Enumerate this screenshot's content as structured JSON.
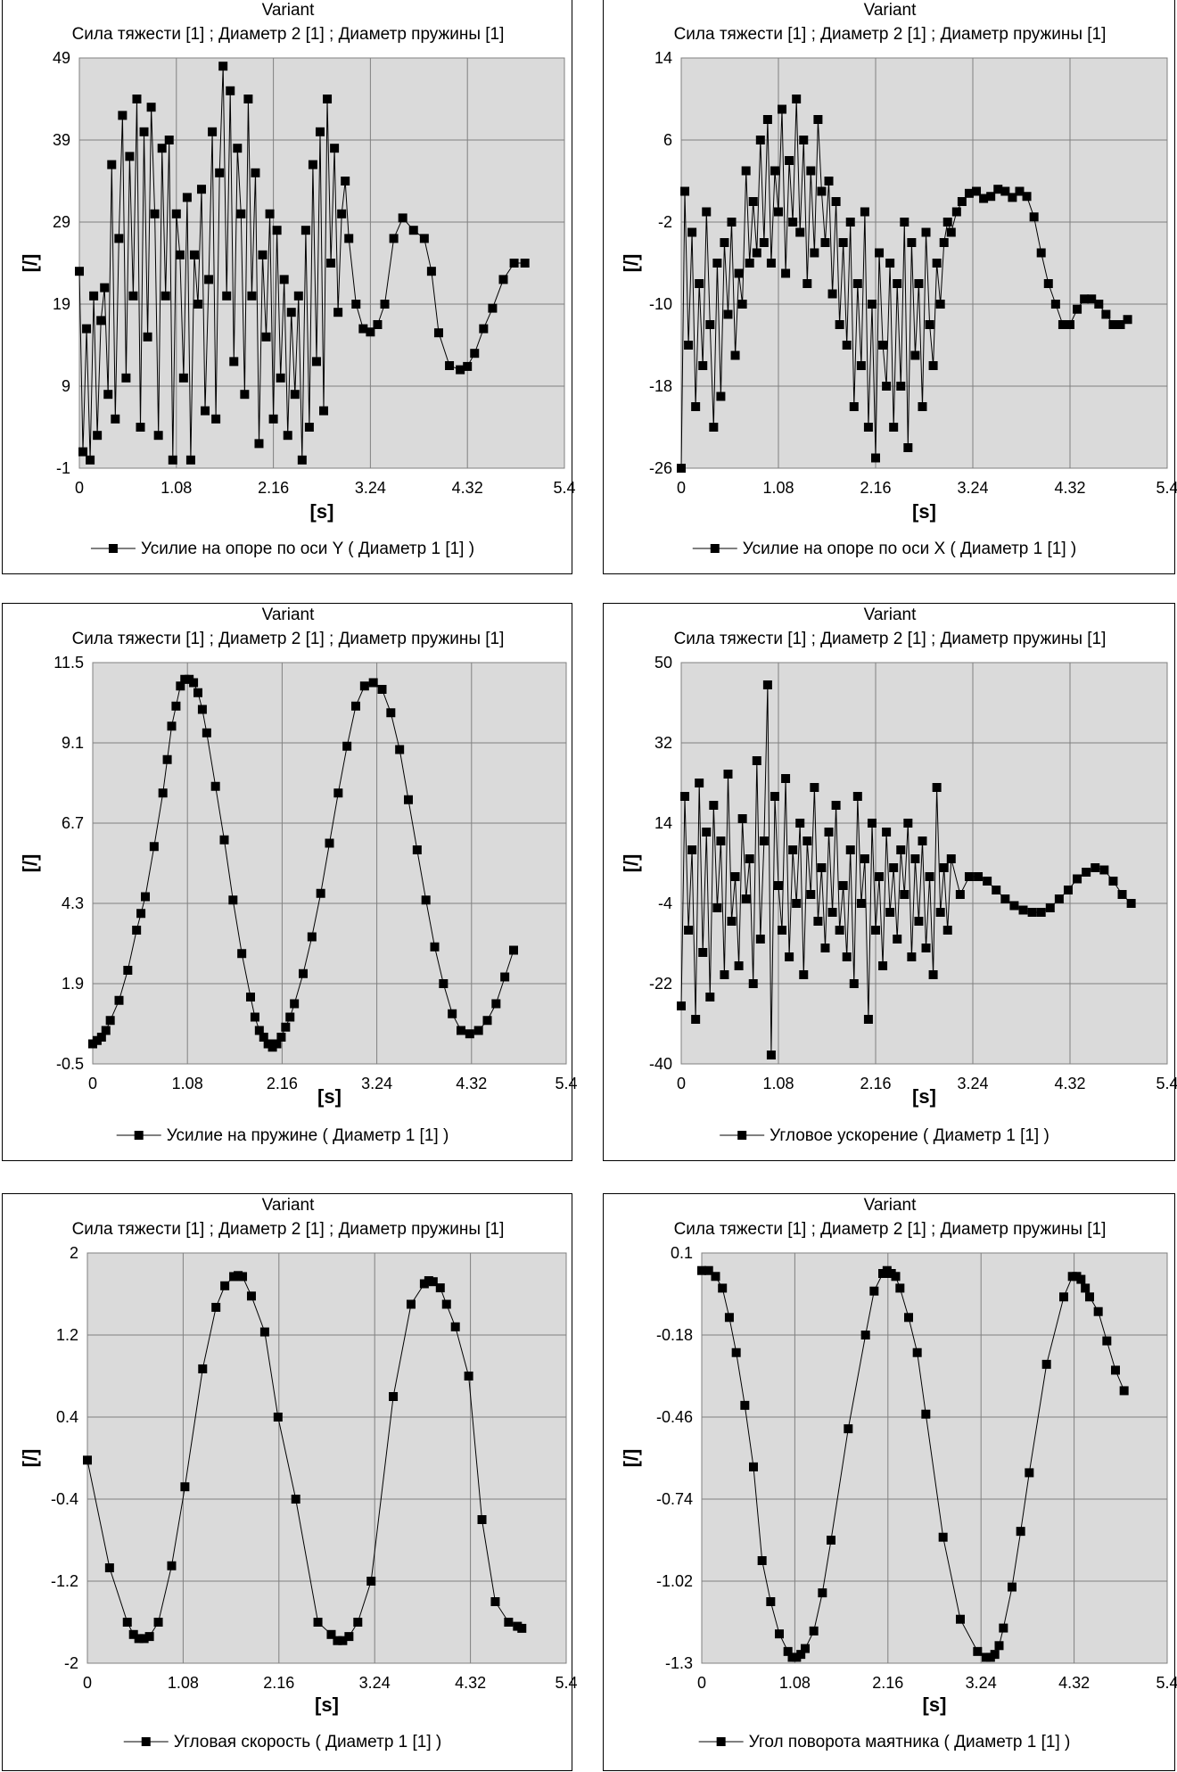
{
  "chart_data": [
    {
      "type": "line",
      "title": "Variant",
      "subtitle": "Сила тяжести [1] ; Диаметр 2 [1] ; Диаметр пружины [1]",
      "xlabel": "[s]",
      "ylabel": "[/]",
      "xlim": [
        0,
        5.4
      ],
      "ylim": [
        -1,
        49
      ],
      "xticks": [
        "0",
        "1.08",
        "2.16",
        "3.24",
        "4.32",
        "5.4"
      ],
      "yticks": [
        "49",
        "39",
        "29",
        "19",
        "9",
        "-1"
      ],
      "grid": true,
      "background_color": "#dadada",
      "series": [
        {
          "name": "Усилие на опоре по оси Y ( Диаметр 1 [1] )",
          "marker": "square",
          "x": [
            0.0,
            0.04,
            0.08,
            0.12,
            0.16,
            0.2,
            0.24,
            0.28,
            0.32,
            0.36,
            0.4,
            0.44,
            0.48,
            0.52,
            0.56,
            0.6,
            0.64,
            0.68,
            0.72,
            0.76,
            0.8,
            0.84,
            0.88,
            0.92,
            0.96,
            1.0,
            1.04,
            1.08,
            1.12,
            1.16,
            1.2,
            1.24,
            1.28,
            1.32,
            1.36,
            1.4,
            1.44,
            1.48,
            1.52,
            1.56,
            1.6,
            1.64,
            1.68,
            1.72,
            1.76,
            1.8,
            1.84,
            1.88,
            1.92,
            1.96,
            2.0,
            2.04,
            2.08,
            2.12,
            2.16,
            2.2,
            2.24,
            2.28,
            2.32,
            2.36,
            2.4,
            2.44,
            2.48,
            2.52,
            2.56,
            2.6,
            2.64,
            2.68,
            2.72,
            2.76,
            2.8,
            2.84,
            2.88,
            2.92,
            2.96,
            3.0,
            3.08,
            3.16,
            3.24,
            3.32,
            3.4,
            3.5,
            3.6,
            3.72,
            3.84,
            3.92,
            4.0,
            4.12,
            4.24,
            4.32,
            4.4,
            4.5,
            4.6,
            4.72,
            4.84,
            4.96
          ],
          "y": [
            23,
            1,
            16,
            0,
            20,
            3,
            17,
            21,
            8,
            36,
            5,
            27,
            42,
            10,
            37,
            20,
            44,
            4,
            40,
            15,
            43,
            30,
            3,
            38,
            20,
            39,
            0,
            30,
            25,
            10,
            32,
            0,
            25,
            19,
            33,
            6,
            22,
            40,
            5,
            35,
            48,
            20,
            45,
            12,
            38,
            30,
            8,
            44,
            20,
            35,
            2,
            25,
            15,
            30,
            5,
            28,
            10,
            22,
            3,
            18,
            8,
            20,
            0,
            28,
            4,
            36,
            12,
            40,
            6,
            44,
            24,
            38,
            18,
            30,
            34,
            27,
            19,
            16,
            15.6,
            16.5,
            19,
            27,
            29.5,
            28,
            27,
            23,
            15.5,
            11.5,
            11,
            11.4,
            13,
            16,
            18.5,
            22,
            24,
            24
          ]
        }
      ]
    },
    {
      "type": "line",
      "title": "Variant",
      "subtitle": "Сила тяжести [1] ; Диаметр 2 [1] ; Диаметр пружины [1]",
      "xlabel": "[s]",
      "ylabel": "[/]",
      "xlim": [
        0,
        5.4
      ],
      "ylim": [
        -26,
        14
      ],
      "xticks": [
        "0",
        "1.08",
        "2.16",
        "3.24",
        "4.32",
        "5.4"
      ],
      "yticks": [
        "14",
        "6",
        "-2",
        "-10",
        "-18",
        "-26"
      ],
      "grid": true,
      "background_color": "#dadada",
      "series": [
        {
          "name": "Усилие на опоре по оси X ( Диаметр 1 [1] )",
          "marker": "square",
          "x": [
            0.0,
            0.04,
            0.08,
            0.12,
            0.16,
            0.2,
            0.24,
            0.28,
            0.32,
            0.36,
            0.4,
            0.44,
            0.48,
            0.52,
            0.56,
            0.6,
            0.64,
            0.68,
            0.72,
            0.76,
            0.8,
            0.84,
            0.88,
            0.92,
            0.96,
            1.0,
            1.04,
            1.08,
            1.12,
            1.16,
            1.2,
            1.24,
            1.28,
            1.32,
            1.36,
            1.4,
            1.44,
            1.48,
            1.52,
            1.56,
            1.6,
            1.64,
            1.68,
            1.72,
            1.76,
            1.8,
            1.84,
            1.88,
            1.92,
            1.96,
            2.0,
            2.04,
            2.08,
            2.12,
            2.16,
            2.2,
            2.24,
            2.28,
            2.32,
            2.36,
            2.4,
            2.44,
            2.48,
            2.52,
            2.56,
            2.6,
            2.64,
            2.68,
            2.72,
            2.76,
            2.8,
            2.84,
            2.88,
            2.92,
            2.96,
            3.0,
            3.06,
            3.12,
            3.2,
            3.28,
            3.36,
            3.44,
            3.52,
            3.6,
            3.68,
            3.76,
            3.84,
            3.92,
            4.0,
            4.08,
            4.16,
            4.24,
            4.32,
            4.4,
            4.48,
            4.56,
            4.64,
            4.72,
            4.8,
            4.88,
            4.96
          ],
          "y": [
            -26,
            1,
            -14,
            -3,
            -20,
            -8,
            -16,
            -1,
            -12,
            -22,
            -6,
            -19,
            -4,
            -11,
            -2,
            -15,
            -7,
            -10,
            3,
            -6,
            0,
            -5,
            6,
            -4,
            8,
            -6,
            3,
            -1,
            9,
            -7,
            4,
            -2,
            10,
            -3,
            6,
            -8,
            3,
            -5,
            8,
            1,
            -4,
            2,
            -9,
            0,
            -12,
            -4,
            -14,
            -2,
            -20,
            -8,
            -16,
            -1,
            -22,
            -10,
            -25,
            -5,
            -14,
            -18,
            -6,
            -22,
            -8,
            -18,
            -2,
            -24,
            -4,
            -15,
            -8,
            -20,
            -3,
            -12,
            -16,
            -6,
            -10,
            -4,
            -2,
            -3,
            -1,
            0,
            0.8,
            1,
            0.3,
            0.5,
            1.2,
            1,
            0.4,
            1.0,
            0.5,
            -1.5,
            -5,
            -8,
            -10,
            -12,
            -12,
            -10.5,
            -9.5,
            -9.5,
            -10,
            -11,
            -12,
            -12,
            -11.5
          ]
        }
      ]
    },
    {
      "type": "line",
      "title": "Variant",
      "subtitle": "Сила тяжести [1] ; Диаметр 2 [1] ; Диаметр пружины [1]",
      "xlabel": "[s]",
      "ylabel": "[/]",
      "xlim": [
        0,
        5.4
      ],
      "ylim": [
        -0.5,
        11.5
      ],
      "xticks": [
        "0",
        "1.08",
        "2.16",
        "3.24",
        "4.32",
        "5.4"
      ],
      "yticks": [
        "11.5",
        "9.1",
        "6.7",
        "4.3",
        "1.9",
        "-0.5"
      ],
      "grid": true,
      "background_color": "#dadada",
      "series": [
        {
          "name": "Усилие на пружине ( Диаметр 1 [1] )",
          "marker": "square",
          "x": [
            0.0,
            0.05,
            0.1,
            0.15,
            0.2,
            0.3,
            0.4,
            0.5,
            0.55,
            0.6,
            0.7,
            0.8,
            0.85,
            0.9,
            0.95,
            1.0,
            1.05,
            1.1,
            1.15,
            1.2,
            1.25,
            1.3,
            1.4,
            1.5,
            1.6,
            1.7,
            1.8,
            1.85,
            1.9,
            1.95,
            2.0,
            2.05,
            2.1,
            2.15,
            2.2,
            2.25,
            2.3,
            2.4,
            2.5,
            2.6,
            2.7,
            2.8,
            2.9,
            3.0,
            3.1,
            3.2,
            3.3,
            3.4,
            3.5,
            3.6,
            3.7,
            3.8,
            3.9,
            4.0,
            4.1,
            4.2,
            4.3,
            4.4,
            4.5,
            4.6,
            4.7,
            4.8
          ],
          "y": [
            0.1,
            0.2,
            0.3,
            0.5,
            0.8,
            1.4,
            2.3,
            3.5,
            4.0,
            4.5,
            6.0,
            7.6,
            8.6,
            9.6,
            10.2,
            10.8,
            11.0,
            11.0,
            10.9,
            10.6,
            10.1,
            9.4,
            7.8,
            6.2,
            4.4,
            2.8,
            1.5,
            0.9,
            0.5,
            0.3,
            0.1,
            0.0,
            0.1,
            0.3,
            0.6,
            0.9,
            1.3,
            2.2,
            3.3,
            4.6,
            6.1,
            7.6,
            9.0,
            10.2,
            10.8,
            10.9,
            10.7,
            10.0,
            8.9,
            7.4,
            5.9,
            4.4,
            3.0,
            1.9,
            1.0,
            0.5,
            0.4,
            0.5,
            0.8,
            1.3,
            2.1,
            2.9
          ]
        }
      ]
    },
    {
      "type": "line",
      "title": "Variant",
      "subtitle": "Сила тяжести [1] ; Диаметр 2 [1] ; Диаметр пружины [1]",
      "xlabel": "[s]",
      "ylabel": "[/]",
      "xlim": [
        0,
        5.4
      ],
      "ylim": [
        -40,
        50
      ],
      "xticks": [
        "0",
        "1.08",
        "2.16",
        "3.24",
        "4.32",
        "5.4"
      ],
      "yticks": [
        "50",
        "32",
        "14",
        "-4",
        "-22",
        "-40"
      ],
      "grid": true,
      "background_color": "#dadada",
      "series": [
        {
          "name": "Угловое ускорение ( Диаметр 1 [1] )",
          "marker": "square",
          "x": [
            0.0,
            0.04,
            0.08,
            0.12,
            0.16,
            0.2,
            0.24,
            0.28,
            0.32,
            0.36,
            0.4,
            0.44,
            0.48,
            0.52,
            0.56,
            0.6,
            0.64,
            0.68,
            0.72,
            0.76,
            0.8,
            0.84,
            0.88,
            0.92,
            0.96,
            1.0,
            1.04,
            1.08,
            1.12,
            1.16,
            1.2,
            1.24,
            1.28,
            1.32,
            1.36,
            1.4,
            1.44,
            1.48,
            1.52,
            1.56,
            1.6,
            1.64,
            1.68,
            1.72,
            1.76,
            1.8,
            1.84,
            1.88,
            1.92,
            1.96,
            2.0,
            2.04,
            2.08,
            2.12,
            2.16,
            2.2,
            2.24,
            2.28,
            2.32,
            2.36,
            2.4,
            2.44,
            2.48,
            2.52,
            2.56,
            2.6,
            2.64,
            2.68,
            2.72,
            2.76,
            2.8,
            2.84,
            2.88,
            2.92,
            2.96,
            3.0,
            3.1,
            3.2,
            3.3,
            3.4,
            3.5,
            3.6,
            3.7,
            3.8,
            3.9,
            4.0,
            4.1,
            4.2,
            4.3,
            4.4,
            4.5,
            4.6,
            4.7,
            4.8,
            4.9,
            5.0
          ],
          "y": [
            -27,
            20,
            -10,
            8,
            -30,
            23,
            -15,
            12,
            -25,
            18,
            -5,
            10,
            -20,
            25,
            -8,
            2,
            -18,
            15,
            -3,
            6,
            -22,
            28,
            -12,
            10,
            45,
            -38,
            20,
            0,
            -10,
            24,
            -16,
            8,
            -4,
            14,
            -20,
            10,
            -2,
            22,
            -8,
            4,
            -14,
            12,
            -6,
            18,
            -10,
            0,
            -16,
            8,
            -22,
            20,
            -4,
            6,
            -30,
            14,
            -10,
            2,
            -18,
            12,
            -6,
            4,
            -12,
            8,
            -2,
            14,
            -16,
            6,
            -8,
            10,
            -14,
            2,
            -20,
            22,
            -6,
            4,
            -10,
            6,
            -2,
            2,
            2,
            1,
            -1,
            -3,
            -4.5,
            -5.5,
            -6,
            -6,
            -5,
            -3,
            -1,
            1.5,
            3,
            4,
            3.5,
            1,
            -2,
            -4
          ]
        }
      ]
    },
    {
      "type": "line",
      "title": "Variant",
      "subtitle": "Сила тяжести [1] ; Диаметр 2 [1] ; Диаметр пружины [1]",
      "xlabel": "[s]",
      "ylabel": "[/]",
      "xlim": [
        0,
        5.4
      ],
      "ylim": [
        -2,
        2
      ],
      "xticks": [
        "0",
        "1.08",
        "2.16",
        "3.24",
        "4.32",
        "5.4"
      ],
      "yticks": [
        "2",
        "1.2",
        "0.4",
        "-0.4",
        "-1.2",
        "-2"
      ],
      "grid": true,
      "background_color": "#dadada",
      "series": [
        {
          "name": "Угловая скорость ( Диаметр 1 [1] )",
          "marker": "square",
          "x": [
            0.0,
            0.25,
            0.45,
            0.52,
            0.58,
            0.64,
            0.7,
            0.8,
            0.95,
            1.1,
            1.3,
            1.45,
            1.55,
            1.65,
            1.7,
            1.75,
            1.85,
            2.0,
            2.15,
            2.35,
            2.6,
            2.75,
            2.82,
            2.88,
            2.95,
            3.05,
            3.2,
            3.45,
            3.65,
            3.8,
            3.85,
            3.9,
            3.98,
            4.05,
            4.15,
            4.3,
            4.45,
            4.6,
            4.75,
            4.85,
            4.9
          ],
          "y": [
            -0.02,
            -1.07,
            -1.6,
            -1.72,
            -1.76,
            -1.76,
            -1.74,
            -1.6,
            -1.05,
            -0.28,
            0.87,
            1.47,
            1.68,
            1.77,
            1.78,
            1.77,
            1.58,
            1.23,
            0.4,
            -0.4,
            -1.6,
            -1.72,
            -1.78,
            -1.78,
            -1.74,
            -1.6,
            -1.2,
            0.6,
            1.5,
            1.7,
            1.73,
            1.72,
            1.66,
            1.5,
            1.28,
            0.8,
            -0.6,
            -1.4,
            -1.6,
            -1.64,
            -1.66
          ]
        }
      ]
    },
    {
      "type": "line",
      "title": "Variant",
      "subtitle": "Сила тяжести [1] ; Диаметр 2 [1] ; Диаметр пружины [1]",
      "xlabel": "[s]",
      "ylabel": "[/]",
      "xlim": [
        0,
        5.4
      ],
      "ylim": [
        -1.3,
        0.1
      ],
      "xticks": [
        "0",
        "1.08",
        "2.16",
        "3.24",
        "4.32",
        "5.4"
      ],
      "yticks": [
        "0.1",
        "-0.18",
        "-0.46",
        "-0.74",
        "-1.02",
        "-1.3"
      ],
      "grid": true,
      "background_color": "#dadada",
      "series": [
        {
          "name": "Угол поворота маятника ( Диаметр 1 [1] )",
          "marker": "square",
          "x": [
            0.0,
            0.08,
            0.16,
            0.24,
            0.32,
            0.4,
            0.5,
            0.6,
            0.7,
            0.8,
            0.9,
            1.0,
            1.05,
            1.1,
            1.15,
            1.2,
            1.3,
            1.4,
            1.5,
            1.7,
            1.9,
            2.0,
            2.1,
            2.15,
            2.2,
            2.25,
            2.3,
            2.4,
            2.5,
            2.6,
            2.8,
            3.0,
            3.2,
            3.3,
            3.35,
            3.4,
            3.45,
            3.5,
            3.6,
            3.7,
            3.8,
            4.0,
            4.2,
            4.3,
            4.35,
            4.4,
            4.45,
            4.5,
            4.6,
            4.7,
            4.8,
            4.9
          ],
          "y": [
            0.04,
            0.04,
            0.02,
            -0.02,
            -0.12,
            -0.24,
            -0.42,
            -0.63,
            -0.95,
            -1.09,
            -1.2,
            -1.26,
            -1.28,
            -1.28,
            -1.27,
            -1.25,
            -1.19,
            -1.06,
            -0.88,
            -0.5,
            -0.18,
            -0.03,
            0.03,
            0.04,
            0.03,
            0.02,
            -0.02,
            -0.12,
            -0.24,
            -0.45,
            -0.87,
            -1.15,
            -1.26,
            -1.28,
            -1.28,
            -1.27,
            -1.24,
            -1.18,
            -1.04,
            -0.85,
            -0.65,
            -0.28,
            -0.05,
            0.02,
            0.02,
            0.01,
            -0.02,
            -0.05,
            -0.1,
            -0.2,
            -0.3,
            -0.37
          ]
        }
      ]
    }
  ]
}
